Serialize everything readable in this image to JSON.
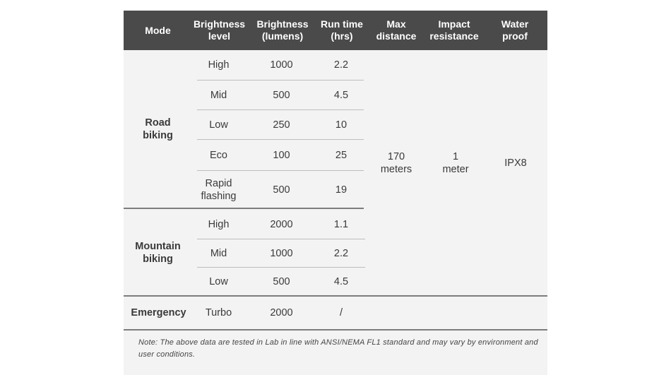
{
  "headers": {
    "mode": "Mode",
    "brightness_level": "Brightness\nlevel",
    "brightness_lumens": "Brightness\n(lumens)",
    "run_time": "Run time\n(hrs)",
    "max_distance": "Max\ndistance",
    "impact_resistance": "Impact\nresistance",
    "water_proof": "Water\nproof"
  },
  "modes": {
    "road": "Road\nbiking",
    "mountain": "Mountain\nbiking",
    "emergency": "Emergency"
  },
  "rows": [
    {
      "level": "High",
      "lumens": "1000",
      "hours": "2.2"
    },
    {
      "level": "Mid",
      "lumens": "500",
      "hours": "4.5"
    },
    {
      "level": "Low",
      "lumens": "250",
      "hours": "10"
    },
    {
      "level": "Eco",
      "lumens": "100",
      "hours": "25"
    },
    {
      "level": "Rapid\nflashing",
      "lumens": "500",
      "hours": "19"
    },
    {
      "level": "High",
      "lumens": "2000",
      "hours": "1.1"
    },
    {
      "level": "Mid",
      "lumens": "1000",
      "hours": "2.2"
    },
    {
      "level": "Low",
      "lumens": "500",
      "hours": "4.5"
    },
    {
      "level": "Turbo",
      "lumens": "2000",
      "hours": "/"
    }
  ],
  "shared": {
    "max_distance": "170\nmeters",
    "impact_resistance": "1\nmeter",
    "water_proof": "IPX8"
  },
  "note": "Note: The above data are tested in Lab in line with ANSI/NEMA FL1 standard and may vary by environment and user conditions.",
  "colors": {
    "header_bg": "#4a4a4a",
    "card_bg": "#f3f3f3",
    "text": "#3a3a3a"
  }
}
